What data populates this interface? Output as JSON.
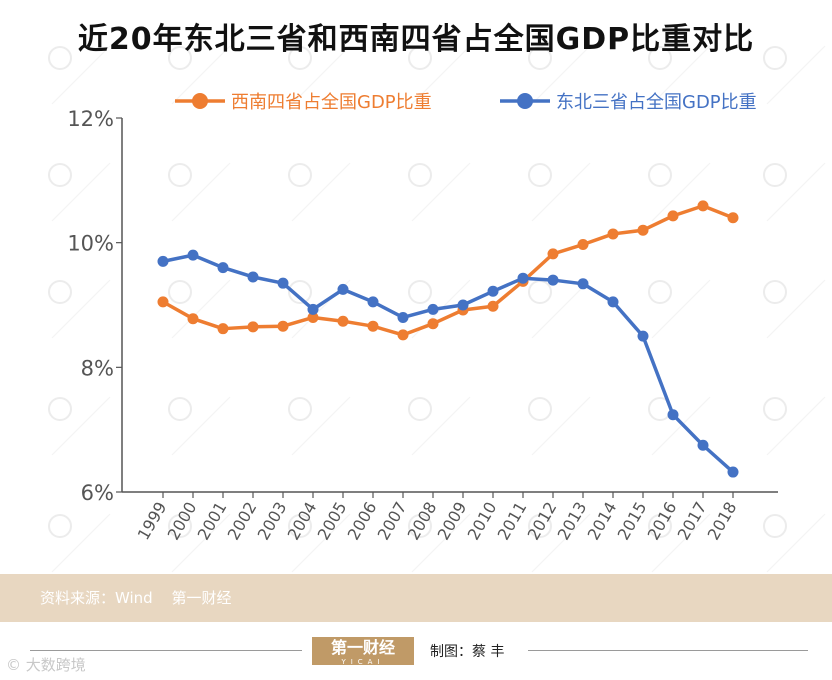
{
  "header": {
    "title": "近20年东北三省和西南四省占全国GDP比重对比"
  },
  "chart_data": {
    "type": "line",
    "title": "近20年东北三省和西南四省占全国GDP比重对比",
    "categories": [
      "1999",
      "2000",
      "2001",
      "2002",
      "2003",
      "2004",
      "2005",
      "2006",
      "2007",
      "2008",
      "2009",
      "2010",
      "2011",
      "2012",
      "2013",
      "2014",
      "2015",
      "2016",
      "2017",
      "2018"
    ],
    "y_ticks": [
      "12%",
      "10%",
      "8%",
      "6%"
    ],
    "ylim": [
      6,
      12
    ],
    "grid": false,
    "legend_position": "top",
    "series": [
      {
        "name": "西南四省占全国GDP比重",
        "color": "#ee7d31",
        "values": [
          9.05,
          8.78,
          8.62,
          8.65,
          8.66,
          8.8,
          8.74,
          8.66,
          8.52,
          8.7,
          8.92,
          8.98,
          9.38,
          9.82,
          9.97,
          10.14,
          10.2,
          10.43,
          10.59,
          10.4
        ]
      },
      {
        "name": "东北三省占全国GDP比重",
        "color": "#4472c4",
        "values": [
          9.7,
          9.8,
          9.6,
          9.45,
          9.35,
          8.93,
          9.25,
          9.05,
          8.8,
          8.93,
          9.0,
          9.22,
          9.43,
          9.4,
          9.34,
          9.05,
          8.5,
          7.24,
          6.75,
          6.32
        ]
      }
    ]
  },
  "footer": {
    "source": "资料来源：Wind",
    "publisher": "第一财经",
    "logo_text": "第一财经",
    "logo_sub": "YICAI",
    "maker": "制图：蔡 丰",
    "watermark": "大数跨境"
  }
}
